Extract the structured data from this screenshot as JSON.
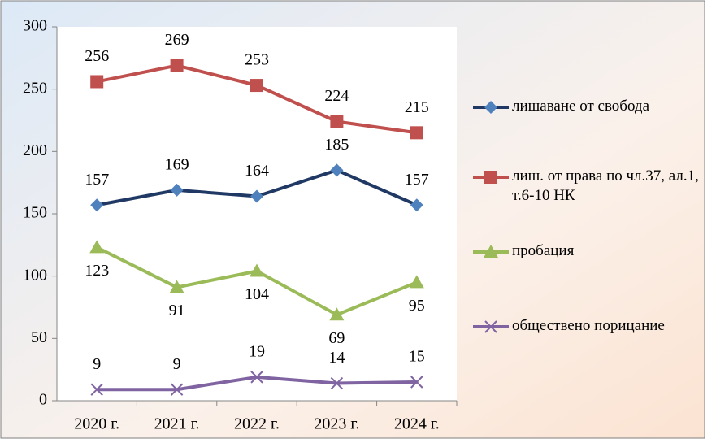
{
  "chart_data": {
    "type": "line",
    "categories": [
      "2020 г.",
      "2021 г.",
      "2022 г.",
      "2023 г.",
      "2024 г."
    ],
    "series": [
      {
        "name": "лишаване от свобода",
        "color": "#1f3864",
        "marker_color": "#4f81bd",
        "marker": "diamond",
        "label_position": "above",
        "values": [
          157,
          169,
          164,
          185,
          157
        ]
      },
      {
        "name": "лиш. от права по чл.37, ал.1, т.6-10 НК",
        "color": "#c0504d",
        "marker_color": "#c0504d",
        "marker": "square",
        "label_position": "above",
        "values": [
          256,
          269,
          253,
          224,
          215
        ]
      },
      {
        "name": "пробация",
        "color": "#9bbb59",
        "marker_color": "#9bbb59",
        "marker": "triangle",
        "label_position": "below",
        "values": [
          123,
          91,
          104,
          69,
          95
        ]
      },
      {
        "name": "обществено порицание",
        "color": "#8064a2",
        "marker_color": "#8064a2",
        "marker": "x",
        "label_position": "above",
        "values": [
          9,
          9,
          19,
          14,
          15
        ]
      }
    ],
    "ylim": [
      0,
      300
    ],
    "yticks": [
      0,
      50,
      100,
      150,
      200,
      250,
      300
    ],
    "legend": "right"
  }
}
